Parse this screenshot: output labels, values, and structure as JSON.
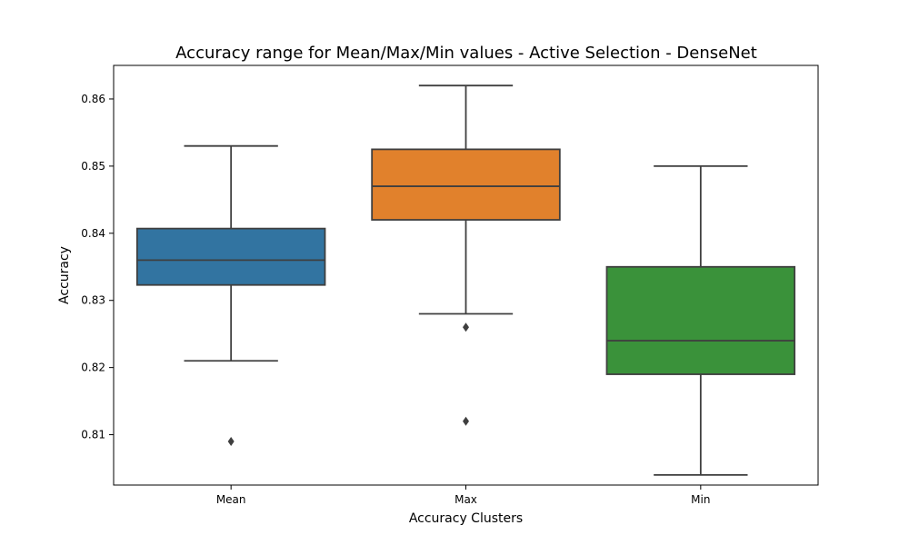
{
  "chart_data": {
    "type": "box",
    "title": "Accuracy range for Mean/Max/Min values - Active Selection - DenseNet",
    "xlabel": "Accuracy Clusters",
    "ylabel": "Accuracy",
    "ylim": [
      0.8025,
      0.865
    ],
    "yticks": [
      "0.81",
      "0.82",
      "0.83",
      "0.84",
      "0.85",
      "0.86"
    ],
    "grid": false,
    "categories": [
      "Mean",
      "Max",
      "Min"
    ],
    "boxes": [
      {
        "category": "Mean",
        "whisker_low": 0.821,
        "q1": 0.8323,
        "median": 0.836,
        "q3": 0.8407,
        "whisker_high": 0.853,
        "outliers": [
          0.809
        ],
        "color": "#3274a1"
      },
      {
        "category": "Max",
        "whisker_low": 0.828,
        "q1": 0.842,
        "median": 0.847,
        "q3": 0.8525,
        "whisker_high": 0.862,
        "outliers": [
          0.826,
          0.812
        ],
        "color": "#e1812c"
      },
      {
        "category": "Min",
        "whisker_low": 0.804,
        "q1": 0.819,
        "median": 0.824,
        "q3": 0.835,
        "whisker_high": 0.85,
        "outliers": [],
        "color": "#3a923a"
      }
    ]
  }
}
